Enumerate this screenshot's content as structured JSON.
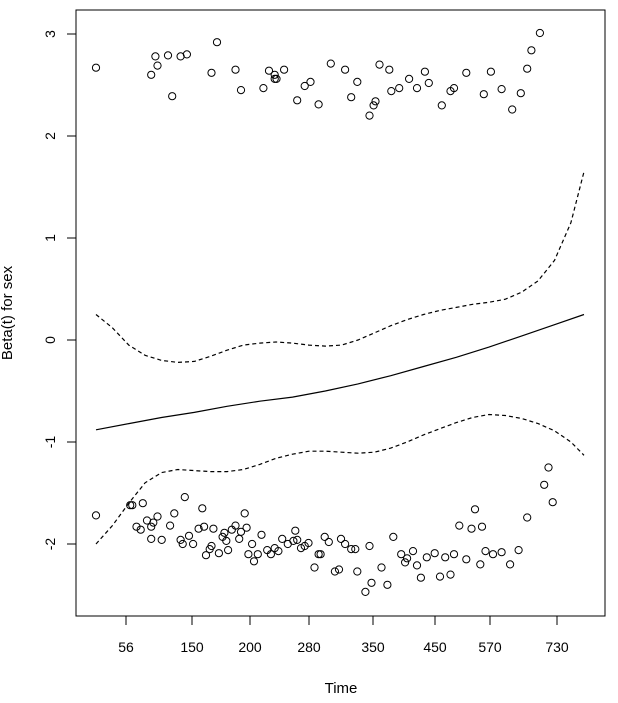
{
  "chart_data": {
    "type": "scatter",
    "xlabel": "Time",
    "ylabel": "Beta(t) for sex",
    "x_tick_labels": [
      "56",
      "150",
      "200",
      "280",
      "350",
      "450",
      "570",
      "730"
    ],
    "y_ticks": [
      -2,
      -1,
      0,
      1,
      2,
      3
    ],
    "ylim": [
      -2.7,
      3.2
    ],
    "grid": false,
    "legend": "none",
    "series": [
      {
        "style": "solid-line",
        "points": [
          [
            0.0,
            -0.88
          ],
          [
            0.1,
            -0.82
          ],
          [
            0.2,
            -0.76
          ],
          [
            0.3,
            -0.71
          ],
          [
            0.4,
            -0.65
          ],
          [
            0.5,
            -0.6
          ],
          [
            0.6,
            -0.56
          ],
          [
            0.7,
            -0.5
          ],
          [
            0.8,
            -0.43
          ],
          [
            0.9,
            -0.35
          ],
          [
            1.0,
            -0.26
          ],
          [
            1.1,
            -0.17
          ],
          [
            1.2,
            -0.07
          ],
          [
            1.3,
            0.04
          ],
          [
            1.4,
            0.15
          ],
          [
            1.49,
            0.25
          ]
        ]
      },
      {
        "style": "dashed-line",
        "points": [
          [
            0.0,
            0.25
          ],
          [
            0.05,
            0.12
          ],
          [
            0.1,
            -0.05
          ],
          [
            0.15,
            -0.15
          ],
          [
            0.2,
            -0.2
          ],
          [
            0.25,
            -0.22
          ],
          [
            0.3,
            -0.21
          ],
          [
            0.35,
            -0.16
          ],
          [
            0.4,
            -0.1
          ],
          [
            0.45,
            -0.05
          ],
          [
            0.5,
            -0.03
          ],
          [
            0.55,
            -0.02
          ],
          [
            0.6,
            -0.03
          ],
          [
            0.65,
            -0.05
          ],
          [
            0.7,
            -0.06
          ],
          [
            0.75,
            -0.05
          ],
          [
            0.8,
            0.0
          ],
          [
            0.85,
            0.07
          ],
          [
            0.9,
            0.14
          ],
          [
            0.95,
            0.2
          ],
          [
            1.0,
            0.25
          ],
          [
            1.05,
            0.29
          ],
          [
            1.1,
            0.32
          ],
          [
            1.15,
            0.35
          ],
          [
            1.2,
            0.37
          ],
          [
            1.25,
            0.4
          ],
          [
            1.3,
            0.47
          ],
          [
            1.35,
            0.58
          ],
          [
            1.4,
            0.78
          ],
          [
            1.45,
            1.15
          ],
          [
            1.49,
            1.65
          ]
        ]
      },
      {
        "style": "dashed-line",
        "points": [
          [
            0.0,
            -2.0
          ],
          [
            0.05,
            -1.82
          ],
          [
            0.1,
            -1.6
          ],
          [
            0.15,
            -1.4
          ],
          [
            0.2,
            -1.3
          ],
          [
            0.25,
            -1.27
          ],
          [
            0.3,
            -1.28
          ],
          [
            0.35,
            -1.29
          ],
          [
            0.4,
            -1.29
          ],
          [
            0.45,
            -1.27
          ],
          [
            0.5,
            -1.22
          ],
          [
            0.55,
            -1.16
          ],
          [
            0.6,
            -1.12
          ],
          [
            0.65,
            -1.09
          ],
          [
            0.7,
            -1.09
          ],
          [
            0.75,
            -1.1
          ],
          [
            0.8,
            -1.11
          ],
          [
            0.85,
            -1.1
          ],
          [
            0.9,
            -1.06
          ],
          [
            0.95,
            -1.0
          ],
          [
            1.0,
            -0.93
          ],
          [
            1.05,
            -0.87
          ],
          [
            1.1,
            -0.81
          ],
          [
            1.15,
            -0.76
          ],
          [
            1.2,
            -0.73
          ],
          [
            1.25,
            -0.74
          ],
          [
            1.3,
            -0.77
          ],
          [
            1.35,
            -0.82
          ],
          [
            1.4,
            -0.89
          ],
          [
            1.45,
            -1.0
          ],
          [
            1.49,
            -1.13
          ]
        ]
      },
      {
        "style": "open-circles",
        "points": [
          [
            0.0,
            2.67
          ],
          [
            0.12,
            2.6
          ],
          [
            0.14,
            2.78
          ],
          [
            0.15,
            2.69
          ],
          [
            0.2,
            2.79
          ],
          [
            0.22,
            2.39
          ],
          [
            0.26,
            2.78
          ],
          [
            0.29,
            2.8
          ],
          [
            0.42,
            2.62
          ],
          [
            0.45,
            2.92
          ],
          [
            0.55,
            2.65
          ],
          [
            0.58,
            2.45
          ],
          [
            0.7,
            2.47
          ],
          [
            0.73,
            2.64
          ],
          [
            0.76,
            2.6
          ],
          [
            0.76,
            2.56
          ],
          [
            0.77,
            2.56
          ],
          [
            0.81,
            2.65
          ],
          [
            0.88,
            2.35
          ],
          [
            0.92,
            2.49
          ],
          [
            0.95,
            2.53
          ],
          [
            0.99,
            2.31
          ],
          [
            1.05,
            2.71
          ],
          [
            1.12,
            2.65
          ],
          [
            1.15,
            2.38
          ],
          [
            1.18,
            2.53
          ],
          [
            1.24,
            2.2
          ],
          [
            1.26,
            2.3
          ],
          [
            1.27,
            2.34
          ],
          [
            1.29,
            2.7
          ],
          [
            1.34,
            2.65
          ],
          [
            1.35,
            2.44
          ],
          [
            1.39,
            2.47
          ],
          [
            1.44,
            2.56
          ],
          [
            1.48,
            2.47
          ],
          [
            1.52,
            2.63
          ],
          [
            1.54,
            2.52
          ],
          [
            1.61,
            2.3
          ],
          [
            1.66,
            2.44
          ],
          [
            1.68,
            2.47
          ],
          [
            1.75,
            2.62
          ],
          [
            1.85,
            2.41
          ],
          [
            1.89,
            2.63
          ],
          [
            1.94,
            2.46
          ],
          [
            1.99,
            2.26
          ],
          [
            2.03,
            2.42
          ],
          [
            2.06,
            2.66
          ],
          [
            2.08,
            2.84
          ],
          [
            2.12,
            3.01
          ],
          [
            0.0,
            -1.72
          ],
          [
            0.02,
            -1.62
          ],
          [
            0.03,
            -1.62
          ],
          [
            0.05,
            -1.83
          ],
          [
            0.07,
            -1.86
          ],
          [
            0.08,
            -1.6
          ],
          [
            0.1,
            -1.77
          ],
          [
            0.12,
            -1.83
          ],
          [
            0.12,
            -1.95
          ],
          [
            0.13,
            -1.79
          ],
          [
            0.15,
            -1.73
          ],
          [
            0.17,
            -1.96
          ],
          [
            0.21,
            -1.82
          ],
          [
            0.23,
            -1.7
          ],
          [
            0.26,
            -1.96
          ],
          [
            0.27,
            -2.0
          ],
          [
            0.28,
            -1.54
          ],
          [
            0.3,
            -1.92
          ],
          [
            0.32,
            -2.0
          ],
          [
            0.35,
            -1.85
          ],
          [
            0.37,
            -1.65
          ],
          [
            0.38,
            -1.83
          ],
          [
            0.39,
            -2.11
          ],
          [
            0.41,
            -2.05
          ],
          [
            0.42,
            -2.02
          ],
          [
            0.43,
            -1.85
          ],
          [
            0.46,
            -2.09
          ],
          [
            0.48,
            -1.93
          ],
          [
            0.49,
            -1.89
          ],
          [
            0.5,
            -1.97
          ],
          [
            0.51,
            -2.06
          ],
          [
            0.53,
            -1.86
          ],
          [
            0.55,
            -1.82
          ],
          [
            0.57,
            -1.95
          ],
          [
            0.58,
            -1.88
          ],
          [
            0.6,
            -1.7
          ],
          [
            0.61,
            -1.84
          ],
          [
            0.62,
            -2.1
          ],
          [
            0.64,
            -2.0
          ],
          [
            0.65,
            -2.17
          ],
          [
            0.67,
            -2.1
          ],
          [
            0.69,
            -1.91
          ],
          [
            0.72,
            -2.06
          ],
          [
            0.74,
            -2.1
          ],
          [
            0.76,
            -2.04
          ],
          [
            0.78,
            -2.07
          ],
          [
            0.8,
            -1.95
          ],
          [
            0.83,
            -2.0
          ],
          [
            0.86,
            -1.97
          ],
          [
            0.87,
            -1.87
          ],
          [
            0.88,
            -1.96
          ],
          [
            0.9,
            -2.04
          ],
          [
            0.92,
            -2.02
          ],
          [
            0.94,
            -1.99
          ],
          [
            0.97,
            -2.23
          ],
          [
            0.99,
            -2.1
          ],
          [
            1.0,
            -2.1
          ],
          [
            1.02,
            -1.93
          ],
          [
            1.04,
            -1.98
          ],
          [
            1.07,
            -2.27
          ],
          [
            1.09,
            -2.25
          ],
          [
            1.1,
            -1.95
          ],
          [
            1.12,
            -2.0
          ],
          [
            1.15,
            -2.05
          ],
          [
            1.17,
            -2.05
          ],
          [
            1.18,
            -2.27
          ],
          [
            1.22,
            -2.47
          ],
          [
            1.24,
            -2.02
          ],
          [
            1.25,
            -2.38
          ],
          [
            1.3,
            -2.23
          ],
          [
            1.33,
            -2.4
          ],
          [
            1.36,
            -1.93
          ],
          [
            1.4,
            -2.1
          ],
          [
            1.42,
            -2.18
          ],
          [
            1.43,
            -2.14
          ],
          [
            1.46,
            -2.07
          ],
          [
            1.48,
            -2.21
          ],
          [
            1.5,
            -2.33
          ],
          [
            1.53,
            -2.13
          ],
          [
            1.57,
            -2.09
          ],
          [
            1.6,
            -2.32
          ],
          [
            1.63,
            -2.13
          ],
          [
            1.66,
            -2.3
          ],
          [
            1.68,
            -2.1
          ],
          [
            1.71,
            -1.82
          ],
          [
            1.75,
            -2.15
          ],
          [
            1.78,
            -1.85
          ],
          [
            1.8,
            -1.66
          ],
          [
            1.83,
            -2.2
          ],
          [
            1.84,
            -1.83
          ],
          [
            1.86,
            -2.07
          ],
          [
            1.9,
            -2.1
          ],
          [
            1.94,
            -2.08
          ],
          [
            1.98,
            -2.2
          ],
          [
            2.02,
            -2.06
          ],
          [
            2.06,
            -1.74
          ],
          [
            2.14,
            -1.42
          ],
          [
            2.16,
            -1.25
          ],
          [
            2.18,
            -1.59
          ]
        ]
      }
    ]
  }
}
